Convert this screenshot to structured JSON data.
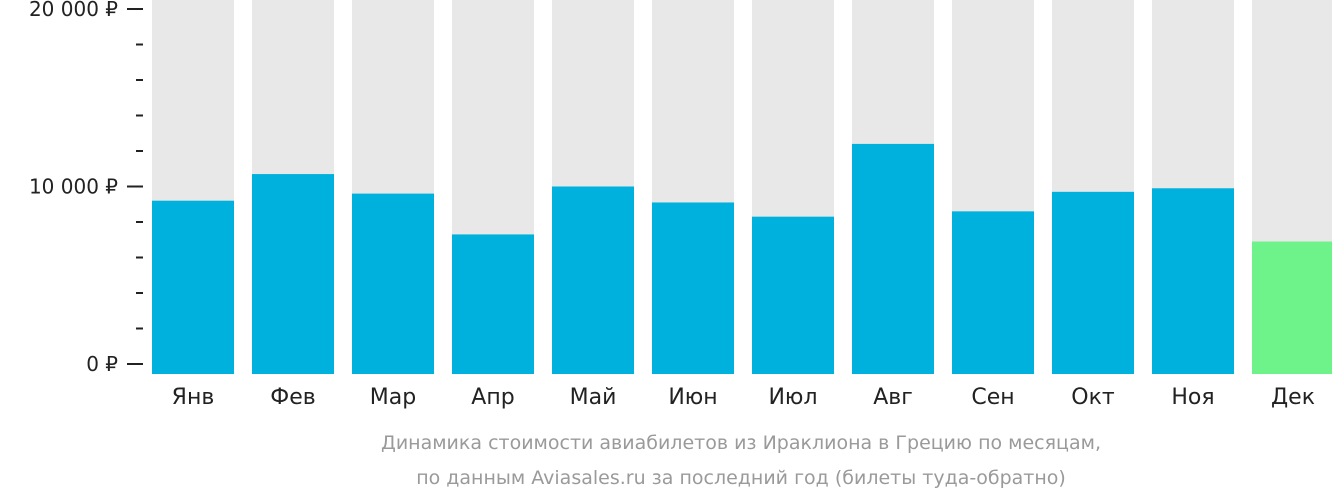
{
  "chart_data": {
    "type": "bar",
    "categories": [
      "Янв",
      "Фев",
      "Мар",
      "Апр",
      "Май",
      "Июн",
      "Июл",
      "Авг",
      "Сен",
      "Окт",
      "Ноя",
      "Дек"
    ],
    "values": [
      9200,
      10700,
      9600,
      7300,
      10000,
      9100,
      8300,
      12400,
      8600,
      9700,
      9900,
      6900
    ],
    "ylim": [
      0,
      21000
    ],
    "y_ticks": [
      {
        "value": 0,
        "label": "0 ₽"
      },
      {
        "value": 10000,
        "label": "10 000 ₽"
      },
      {
        "value": 20000,
        "label": "20 000 ₽"
      }
    ],
    "y_minor_step": 2000,
    "highlight_index": 11,
    "colors": {
      "bar": "#00b0dd",
      "highlight": "#6ef38a",
      "background_column": "#e8e8e8",
      "axis": "#222222"
    },
    "grid": false,
    "legend": "none",
    "caption": [
      "Динамика стоимости авиабилетов из Ираклиона в Грецию по месяцам,",
      "по данным Aviasales.ru за последний год (билеты туда-обратно)"
    ]
  }
}
